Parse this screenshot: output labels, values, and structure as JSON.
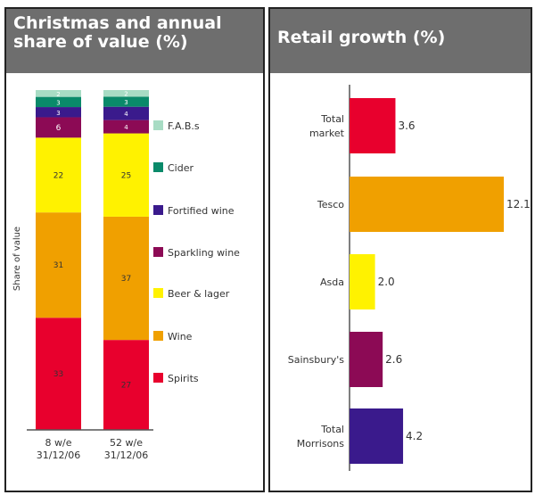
{
  "chart_data": [
    {
      "type": "bar",
      "stacked": true,
      "title": "Christmas and annual share of value (%)",
      "ylabel": "Share of value",
      "categories": [
        "8 w/e 31/12/06",
        "52 w/e 31/12/06"
      ],
      "category_lines": [
        [
          "8 w/e",
          "31/12/06"
        ],
        [
          "52 w/e",
          "31/12/06"
        ]
      ],
      "series": [
        {
          "name": "Spirits",
          "color": "#e8002d",
          "values": [
            33,
            27
          ]
        },
        {
          "name": "Wine",
          "color": "#f0a000",
          "values": [
            31,
            37
          ]
        },
        {
          "name": "Beer & lager",
          "color": "#fff200",
          "values": [
            22,
            25
          ]
        },
        {
          "name": "Sparkling wine",
          "color": "#8c0a55",
          "values": [
            6,
            4
          ]
        },
        {
          "name": "Fortified wine",
          "color": "#3a1a8c",
          "values": [
            3,
            4
          ]
        },
        {
          "name": "Cider",
          "color": "#0a8a6a",
          "values": [
            3,
            3
          ]
        },
        {
          "name": "F.A.B.s",
          "color": "#a8dcc4",
          "values": [
            2,
            2
          ]
        }
      ],
      "ylim": [
        0,
        100
      ],
      "legend": "right"
    },
    {
      "type": "bar",
      "orientation": "horizontal",
      "title": "Retail growth (%)",
      "categories": [
        "Total market",
        "Tesco",
        "Asda",
        "Sainsbury's",
        "Total Morrisons"
      ],
      "category_lines": [
        [
          "Total",
          "market"
        ],
        [
          "Tesco"
        ],
        [
          "Asda"
        ],
        [
          "Sainsbury's"
        ],
        [
          "Total",
          "Morrisons"
        ]
      ],
      "values": [
        3.6,
        12.1,
        2.0,
        2.6,
        4.2
      ],
      "labels": [
        "3.6",
        "12.1",
        "2.0",
        "2.6",
        "4.2"
      ],
      "colors": [
        "#e8002d",
        "#f0a000",
        "#fff200",
        "#8c0a55",
        "#3a1a8c"
      ],
      "xlim": [
        0,
        12.1
      ]
    }
  ]
}
